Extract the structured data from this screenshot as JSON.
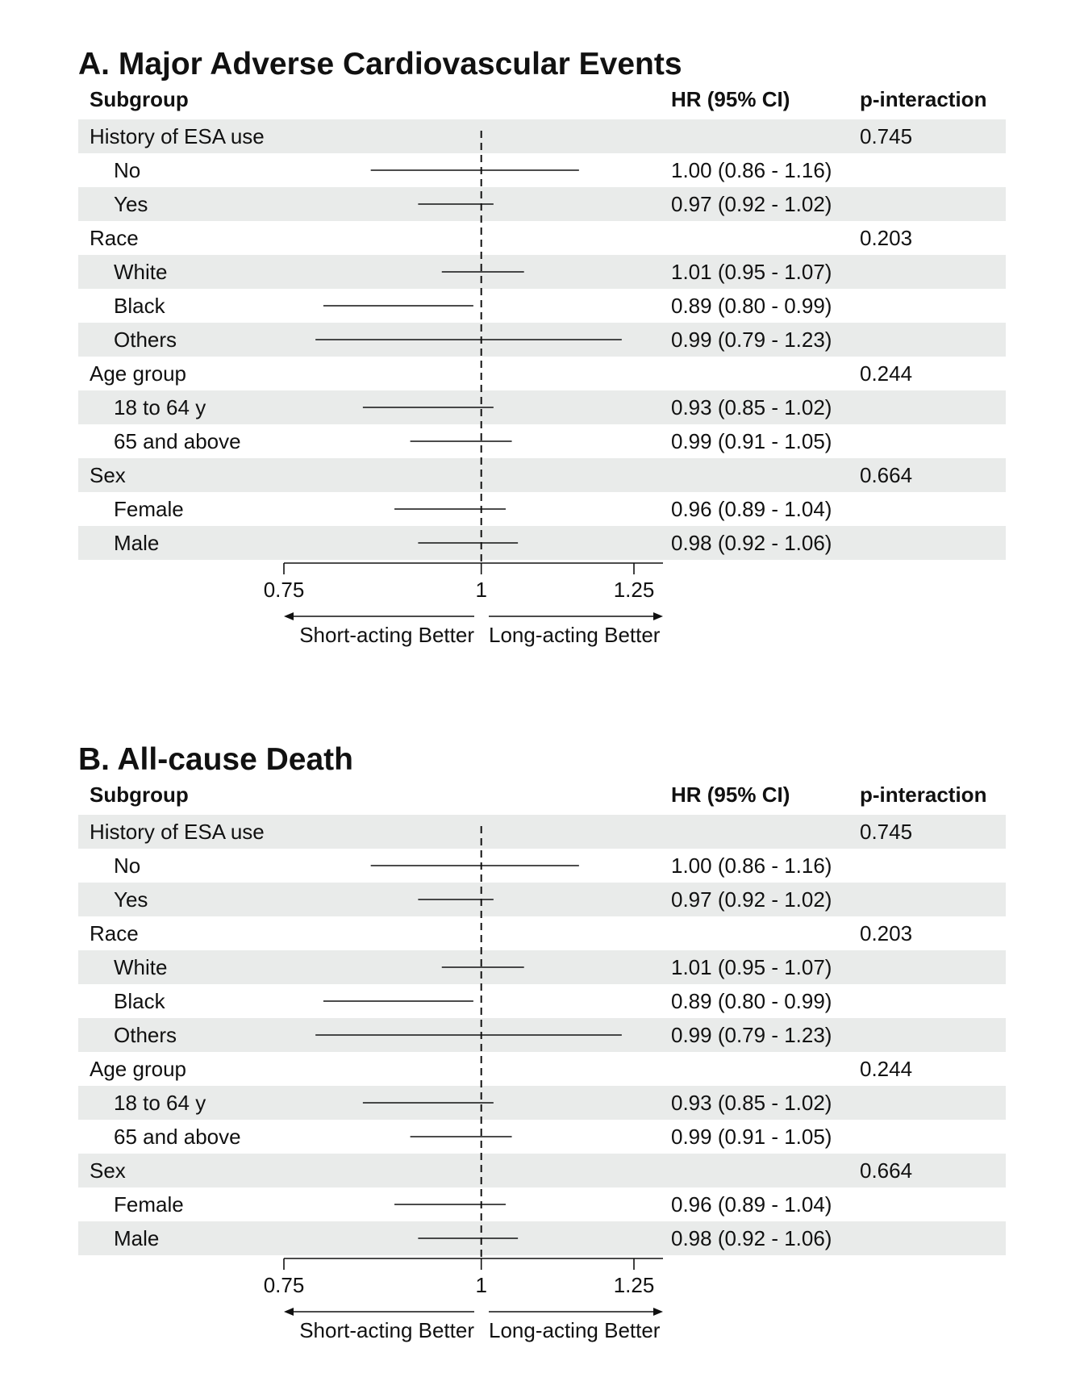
{
  "chart_data": [
    {
      "type": "forest",
      "title": "A. Major Adverse Cardiovascular Events",
      "columns": {
        "subgroup": "Subgroup",
        "hr": "HR (95% CI)",
        "p": "p-interaction"
      },
      "x_axis": {
        "range": [
          0.75,
          1.25
        ],
        "ticks": [
          "0.75",
          "1",
          "1.25"
        ],
        "tick_values": [
          0.75,
          1,
          1.25
        ],
        "reference_line": 1,
        "reference_style": "dashed"
      },
      "direction_labels": {
        "left": "Short-acting Better",
        "right": "Long-acting Better"
      },
      "rows": [
        {
          "label": "History of ESA use",
          "level": 0,
          "hr_text": "",
          "p": "0.745",
          "shaded": true
        },
        {
          "label": "No",
          "level": 1,
          "hr_text": "1.00 (0.86 - 1.16)",
          "p": "",
          "hr": 1.0,
          "lo": 0.86,
          "hi": 1.16,
          "shaded": false
        },
        {
          "label": "Yes",
          "level": 1,
          "hr_text": "0.97 (0.92 - 1.02)",
          "p": "",
          "hr": 0.97,
          "lo": 0.92,
          "hi": 1.02,
          "shaded": true
        },
        {
          "label": "Race",
          "level": 0,
          "hr_text": "",
          "p": "0.203",
          "shaded": false
        },
        {
          "label": "White",
          "level": 1,
          "hr_text": "1.01 (0.95 - 1.07)",
          "p": "",
          "hr": 1.01,
          "lo": 0.95,
          "hi": 1.07,
          "shaded": true
        },
        {
          "label": "Black",
          "level": 1,
          "hr_text": "0.89 (0.80 - 0.99)",
          "p": "",
          "hr": 0.89,
          "lo": 0.8,
          "hi": 0.99,
          "shaded": false
        },
        {
          "label": "Others",
          "level": 1,
          "hr_text": "0.99 (0.79 - 1.23)",
          "p": "",
          "hr": 0.99,
          "lo": 0.79,
          "hi": 1.23,
          "shaded": true
        },
        {
          "label": "Age group",
          "level": 0,
          "hr_text": "",
          "p": "0.244",
          "shaded": false
        },
        {
          "label": "18 to 64 y",
          "level": 1,
          "hr_text": "0.93 (0.85 - 1.02)",
          "p": "",
          "hr": 0.93,
          "lo": 0.85,
          "hi": 1.02,
          "shaded": true
        },
        {
          "label": "65 and above",
          "level": 1,
          "hr_text": "0.99 (0.91 - 1.05)",
          "p": "",
          "hr": 0.99,
          "lo": 0.91,
          "hi": 1.05,
          "shaded": false
        },
        {
          "label": "Sex",
          "level": 0,
          "hr_text": "",
          "p": "0.664",
          "shaded": true
        },
        {
          "label": "Female",
          "level": 1,
          "hr_text": "0.96 (0.89 - 1.04)",
          "p": "",
          "hr": 0.96,
          "lo": 0.89,
          "hi": 1.04,
          "shaded": false
        },
        {
          "label": "Male",
          "level": 1,
          "hr_text": "0.98 (0.92 - 1.06)",
          "p": "",
          "hr": 0.98,
          "lo": 0.92,
          "hi": 1.06,
          "shaded": true
        }
      ]
    },
    {
      "type": "forest",
      "title": "B. All-cause Death",
      "columns": {
        "subgroup": "Subgroup",
        "hr": "HR (95% CI)",
        "p": "p-interaction"
      },
      "x_axis": {
        "range": [
          0.75,
          1.25
        ],
        "ticks": [
          "0.75",
          "1",
          "1.25"
        ],
        "tick_values": [
          0.75,
          1,
          1.25
        ],
        "reference_line": 1,
        "reference_style": "dashed"
      },
      "direction_labels": {
        "left": "Short-acting Better",
        "right": "Long-acting Better"
      },
      "rows": [
        {
          "label": "History of ESA use",
          "level": 0,
          "hr_text": "",
          "p": "0.745",
          "shaded": true
        },
        {
          "label": "No",
          "level": 1,
          "hr_text": "1.00 (0.86 - 1.16)",
          "p": "",
          "hr": 1.0,
          "lo": 0.86,
          "hi": 1.16,
          "shaded": false
        },
        {
          "label": "Yes",
          "level": 1,
          "hr_text": "0.97 (0.92 - 1.02)",
          "p": "",
          "hr": 0.97,
          "lo": 0.92,
          "hi": 1.02,
          "shaded": true
        },
        {
          "label": "Race",
          "level": 0,
          "hr_text": "",
          "p": "0.203",
          "shaded": false
        },
        {
          "label": "White",
          "level": 1,
          "hr_text": "1.01 (0.95 - 1.07)",
          "p": "",
          "hr": 1.01,
          "lo": 0.95,
          "hi": 1.07,
          "shaded": true
        },
        {
          "label": "Black",
          "level": 1,
          "hr_text": "0.89 (0.80 - 0.99)",
          "p": "",
          "hr": 0.89,
          "lo": 0.8,
          "hi": 0.99,
          "shaded": false
        },
        {
          "label": "Others",
          "level": 1,
          "hr_text": "0.99 (0.79 - 1.23)",
          "p": "",
          "hr": 0.99,
          "lo": 0.79,
          "hi": 1.23,
          "shaded": true
        },
        {
          "label": "Age group",
          "level": 0,
          "hr_text": "",
          "p": "0.244",
          "shaded": false
        },
        {
          "label": "18 to 64 y",
          "level": 1,
          "hr_text": "0.93 (0.85 - 1.02)",
          "p": "",
          "hr": 0.93,
          "lo": 0.85,
          "hi": 1.02,
          "shaded": true
        },
        {
          "label": "65 and above",
          "level": 1,
          "hr_text": "0.99 (0.91 - 1.05)",
          "p": "",
          "hr": 0.99,
          "lo": 0.91,
          "hi": 1.05,
          "shaded": false
        },
        {
          "label": "Sex",
          "level": 0,
          "hr_text": "",
          "p": "0.664",
          "shaded": true
        },
        {
          "label": "Female",
          "level": 1,
          "hr_text": "0.96 (0.89 - 1.04)",
          "p": "",
          "hr": 0.96,
          "lo": 0.89,
          "hi": 1.04,
          "shaded": false
        },
        {
          "label": "Male",
          "level": 1,
          "hr_text": "0.98 (0.92 - 1.06)",
          "p": "",
          "hr": 0.98,
          "lo": 0.92,
          "hi": 1.06,
          "shaded": true
        }
      ]
    }
  ],
  "colors": {
    "row_shade": "#e9ebea",
    "line": "#111111"
  }
}
